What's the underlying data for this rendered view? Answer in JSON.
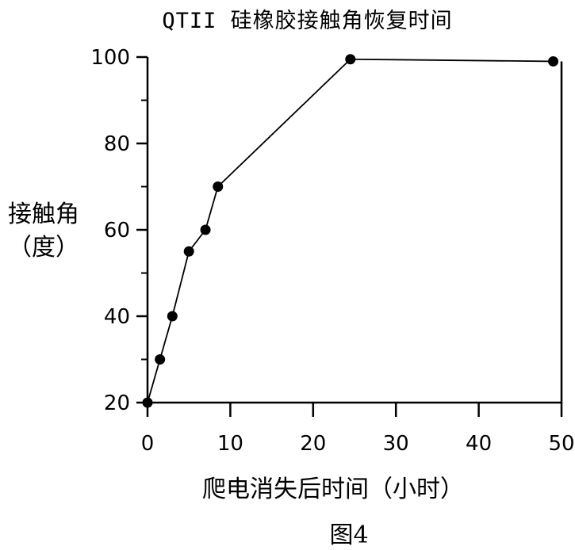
{
  "chart_data": {
    "type": "line",
    "title": "QTII 硅橡胶接触角恢复时间",
    "xlabel": "爬电消失后时间（小时）",
    "ylabel_line1": "接触角",
    "ylabel_line2": "（度）",
    "caption": "图4",
    "xlim": [
      0,
      50
    ],
    "ylim": [
      20,
      100
    ],
    "x_ticks": [
      0,
      10,
      20,
      30,
      40,
      50
    ],
    "y_ticks": [
      20,
      40,
      60,
      80,
      100
    ],
    "x_tick_labels": [
      "0",
      "10",
      "20",
      "30",
      "40",
      "50"
    ],
    "y_tick_labels": [
      "20",
      "40",
      "60",
      "80",
      "100"
    ],
    "series": [
      {
        "x": [
          0,
          1.5,
          3,
          5,
          7,
          8.5,
          24.5,
          49
        ],
        "y": [
          20,
          30,
          40,
          55,
          60,
          70,
          99.5,
          99
        ]
      }
    ],
    "grid": false,
    "legend": "none",
    "line_color": "#000000",
    "marker_color": "#000000"
  }
}
